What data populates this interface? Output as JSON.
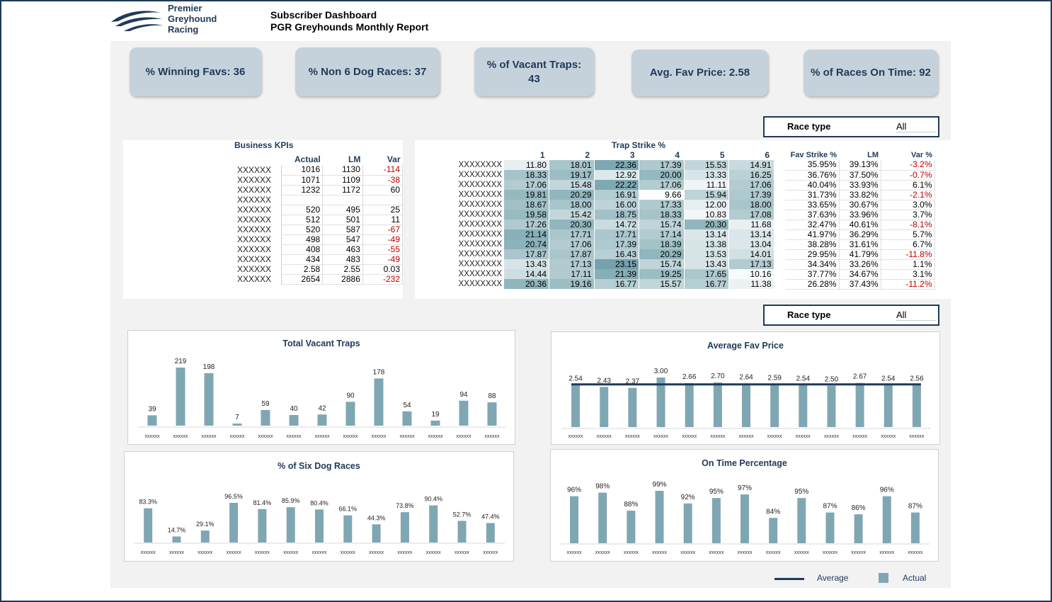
{
  "brand": {
    "name_line1": "Premier",
    "name_line2": "Greyhound",
    "name_line3": "Racing"
  },
  "header": {
    "title": "Subscriber Dashboard",
    "subtitle": "PGR Greyhounds Monthly Report"
  },
  "kpis": [
    {
      "label": "% Winning Favs: 36"
    },
    {
      "label": "% Non 6 Dog Races: 37"
    },
    {
      "label": "% of Vacant Traps: 43"
    },
    {
      "label": "Avg. Fav Price: 2.58"
    },
    {
      "label": "% of Races On Time: 92"
    }
  ],
  "filters": [
    {
      "label": "Race type",
      "value": "All"
    },
    {
      "label": "Race type",
      "value": "All"
    }
  ],
  "business_kpis": {
    "title": "Business KPIs",
    "columns": [
      "Actual",
      "LM",
      "Var"
    ],
    "rows": [
      {
        "label": "XXXXXX",
        "actual": "1016",
        "lm": "1130",
        "var": "-114"
      },
      {
        "label": "XXXXXX",
        "actual": "1071",
        "lm": "1109",
        "var": "-38"
      },
      {
        "label": "XXXXXX",
        "actual": "1232",
        "lm": "1172",
        "var": "60"
      },
      {
        "label": "XXXXXX",
        "actual": "",
        "lm": "",
        "var": ""
      },
      {
        "label": "XXXXXX",
        "actual": "520",
        "lm": "495",
        "var": "25"
      },
      {
        "label": "XXXXXX",
        "actual": "512",
        "lm": "501",
        "var": "11"
      },
      {
        "label": "XXXXXX",
        "actual": "520",
        "lm": "587",
        "var": "-67"
      },
      {
        "label": "XXXXXX",
        "actual": "498",
        "lm": "547",
        "var": "-49"
      },
      {
        "label": "XXXXXX",
        "actual": "408",
        "lm": "463",
        "var": "-55"
      },
      {
        "label": "XXXXXX",
        "actual": "434",
        "lm": "483",
        "var": "-49"
      },
      {
        "label": "XXXXXX",
        "actual": "2.58",
        "lm": "2.55",
        "var": "0.03"
      },
      {
        "label": "XXXXXX",
        "actual": "2654",
        "lm": "2886",
        "var": "-232"
      }
    ]
  },
  "trap_strike": {
    "title": "Trap Strike %",
    "columns": [
      "1",
      "2",
      "3",
      "4",
      "5",
      "6"
    ],
    "rows": [
      {
        "label": "XXXXXXXX",
        "values": [
          "11.80",
          "18.01",
          "22.36",
          "17.39",
          "15.53",
          "14.91"
        ]
      },
      {
        "label": "XXXXXXXX",
        "values": [
          "18.33",
          "19.17",
          "12.92",
          "20.00",
          "13.33",
          "16.25"
        ]
      },
      {
        "label": "XXXXXXXX",
        "values": [
          "17.06",
          "15.48",
          "22.22",
          "17.06",
          "11.11",
          "17.06"
        ]
      },
      {
        "label": "XXXXXXXX",
        "values": [
          "19.81",
          "20.29",
          "16.91",
          "9.66",
          "15.94",
          "17.39"
        ]
      },
      {
        "label": "XXXXXXXX",
        "values": [
          "18.67",
          "18.00",
          "16.00",
          "17.33",
          "12.00",
          "18.00"
        ]
      },
      {
        "label": "XXXXXXXX",
        "values": [
          "19.58",
          "15.42",
          "18.75",
          "18.33",
          "10.83",
          "17.08"
        ]
      },
      {
        "label": "XXXXXXXX",
        "values": [
          "17.26",
          "20.30",
          "14.72",
          "15.74",
          "20.30",
          "11.68"
        ]
      },
      {
        "label": "XXXXXXXX",
        "values": [
          "21.14",
          "17.71",
          "17.71",
          "17.14",
          "13.14",
          "13.14"
        ]
      },
      {
        "label": "XXXXXXXX",
        "values": [
          "20.74",
          "17.06",
          "17.39",
          "18.39",
          "13.38",
          "13.04"
        ]
      },
      {
        "label": "XXXXXXXX",
        "values": [
          "17.87",
          "17.87",
          "16.43",
          "20.29",
          "13.53",
          "14.01"
        ]
      },
      {
        "label": "XXXXXXXX",
        "values": [
          "13.43",
          "17.13",
          "23.15",
          "15.74",
          "13.43",
          "17.13"
        ]
      },
      {
        "label": "XXXXXXXX",
        "values": [
          "14.44",
          "17.11",
          "21.39",
          "19.25",
          "17.65",
          "10.16"
        ]
      },
      {
        "label": "XXXXXXXX",
        "values": [
          "20.36",
          "19.16",
          "16.77",
          "15.57",
          "16.77",
          "11.38"
        ]
      }
    ]
  },
  "fav_strike": {
    "columns": [
      "Fav Strike %",
      "LM",
      "Var %"
    ],
    "rows": [
      [
        "35.95%",
        "39.13%",
        "-3.2%"
      ],
      [
        "36.76%",
        "37.50%",
        "-0.7%"
      ],
      [
        "40.04%",
        "33.93%",
        "6.1%"
      ],
      [
        "31.73%",
        "33.82%",
        "-2.1%"
      ],
      [
        "33.65%",
        "30.67%",
        "3.0%"
      ],
      [
        "37.63%",
        "33.96%",
        "3.7%"
      ],
      [
        "32.47%",
        "40.61%",
        "-8.1%"
      ],
      [
        "41.97%",
        "36.29%",
        "5.7%"
      ],
      [
        "38.28%",
        "31.61%",
        "6.7%"
      ],
      [
        "29.95%",
        "41.79%",
        "-11.8%"
      ],
      [
        "34.34%",
        "33.26%",
        "1.1%"
      ],
      [
        "37.77%",
        "34.67%",
        "3.1%"
      ],
      [
        "26.28%",
        "37.43%",
        "-11.2%"
      ]
    ]
  },
  "chart_data": [
    {
      "type": "bar",
      "title": "Total Vacant Traps",
      "categories": [
        "xxxxxx",
        "xxxxxx",
        "xxxxxx",
        "xxxxxx",
        "xxxxxx",
        "xxxxxx",
        "xxxxxx",
        "xxxxxx",
        "xxxxxx",
        "xxxxxx",
        "xxxxxx",
        "xxxxxx",
        "xxxxxx"
      ],
      "values": [
        39,
        219,
        198,
        7,
        59,
        40,
        42,
        90,
        178,
        54,
        19,
        94,
        88
      ],
      "labels": [
        "39",
        "219",
        "198",
        "7",
        "59",
        "40",
        "42",
        "90",
        "178",
        "54",
        "19",
        "94",
        "88"
      ],
      "ylim": [
        0,
        219
      ]
    },
    {
      "type": "bar",
      "title": "Average Fav Price",
      "categories": [
        "xxxxxx",
        "xxxxxx",
        "xxxxxx",
        "xxxxxx",
        "xxxxxx",
        "xxxxxx",
        "xxxxxx",
        "xxxxxx",
        "xxxxxx",
        "xxxxxx",
        "xxxxxx",
        "xxxxxx",
        "xxxxxx"
      ],
      "values": [
        2.54,
        2.43,
        2.37,
        3.0,
        2.66,
        2.7,
        2.64,
        2.59,
        2.54,
        2.5,
        2.67,
        2.54,
        2.56
      ],
      "labels": [
        "2.54",
        "2.43",
        "2.37",
        "3.00",
        "2.66",
        "2.70",
        "2.64",
        "2.59",
        "2.54",
        "2.50",
        "2.67",
        "2.54",
        "2.56"
      ],
      "average": 2.58,
      "ylim": [
        0,
        3.0
      ]
    },
    {
      "type": "bar",
      "title": "% of Six Dog Races",
      "categories": [
        "xxxxxx",
        "xxxxxx",
        "xxxxxx",
        "xxxxxx",
        "xxxxxx",
        "xxxxxx",
        "xxxxxx",
        "xxxxxx",
        "xxxxxx",
        "xxxxxx",
        "xxxxxx",
        "xxxxxx",
        "xxxxxx"
      ],
      "values": [
        83.3,
        14.7,
        29.1,
        96.5,
        81.4,
        85.9,
        80.4,
        66.1,
        44.3,
        73.8,
        90.4,
        52.7,
        47.4
      ],
      "labels": [
        "83.3%",
        "14.7%",
        "29.1%",
        "96.5%",
        "81.4%",
        "85.9%",
        "80.4%",
        "66.1%",
        "44.3%",
        "73.8%",
        "90.4%",
        "52.7%",
        "47.4%"
      ],
      "ylim": [
        0,
        96.5
      ]
    },
    {
      "type": "bar",
      "title": "On Time Percentage",
      "categories": [
        "xxxxxx",
        "xxxxxx",
        "xxxxxx",
        "xxxxxx",
        "xxxxxx",
        "xxxxxx",
        "xxxxxx",
        "xxxxxx",
        "xxxxxx",
        "xxxxxx",
        "xxxxxx",
        "xxxxxx",
        "xxxxxx"
      ],
      "values": [
        96,
        98,
        88,
        99,
        92,
        95,
        97,
        84,
        95,
        87,
        86,
        96,
        87
      ],
      "labels": [
        "96%",
        "98%",
        "88%",
        "99%",
        "92%",
        "95%",
        "97%",
        "84%",
        "95%",
        "87%",
        "86%",
        "96%",
        "87%"
      ],
      "ylim": [
        70,
        99
      ]
    }
  ],
  "legend": {
    "average": "Average",
    "actual": "Actual"
  },
  "colors": {
    "bar": "#7fa7b3",
    "navy": "#1f3a5a",
    "negative": "#c00000"
  }
}
